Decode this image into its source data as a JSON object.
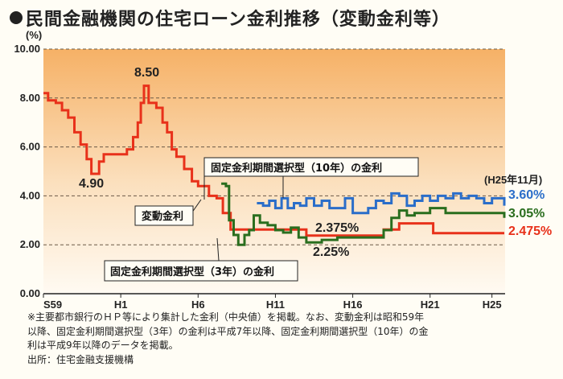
{
  "title": "民間金融機関の住宅ローン金利推移（変動金利等）",
  "chart_data": {
    "type": "line",
    "ylabel_unit": "(%)",
    "ylim": [
      0,
      10
    ],
    "yticks": [
      "0.00",
      "2.00",
      "4.00",
      "6.00",
      "8.00",
      "10.00"
    ],
    "xticks": [
      "S59",
      "H1",
      "H6",
      "H11",
      "H16",
      "H21",
      "H25"
    ],
    "grid": true,
    "series": [
      {
        "name": "変動金利",
        "color": "#e8311a",
        "points": [
          [
            1984.0,
            8.2
          ],
          [
            1984.3,
            7.9
          ],
          [
            1984.8,
            7.8
          ],
          [
            1985.2,
            7.5
          ],
          [
            1985.6,
            7.2
          ],
          [
            1986.0,
            6.6
          ],
          [
            1986.4,
            6.1
          ],
          [
            1986.8,
            5.5
          ],
          [
            1987.1,
            4.9
          ],
          [
            1987.6,
            5.4
          ],
          [
            1987.9,
            5.7
          ],
          [
            1988.6,
            5.7
          ],
          [
            1989.4,
            5.9
          ],
          [
            1989.8,
            6.4
          ],
          [
            1990.1,
            7.0
          ],
          [
            1990.3,
            7.8
          ],
          [
            1990.5,
            8.5
          ],
          [
            1990.8,
            7.8
          ],
          [
            1991.3,
            7.6
          ],
          [
            1991.7,
            7.0
          ],
          [
            1992.0,
            6.6
          ],
          [
            1992.3,
            5.9
          ],
          [
            1992.6,
            5.6
          ],
          [
            1993.1,
            5.1
          ],
          [
            1993.6,
            4.6
          ],
          [
            1994.0,
            4.4
          ],
          [
            1994.5,
            4.4
          ],
          [
            1994.7,
            4.0
          ],
          [
            1995.2,
            3.9
          ],
          [
            1995.6,
            3.3
          ],
          [
            1996.1,
            2.625
          ],
          [
            1999.0,
            2.625
          ],
          [
            2000.0,
            2.625
          ],
          [
            2001.0,
            2.375
          ],
          [
            2005.0,
            2.375
          ],
          [
            2006.0,
            2.625
          ],
          [
            2007.0,
            2.875
          ],
          [
            2009.0,
            2.875
          ],
          [
            2009.2,
            2.475
          ],
          [
            2013.8,
            2.475
          ]
        ],
        "end_label": "2.475%"
      },
      {
        "name": "固定金利期間選択型（3年）",
        "color": "#2a6e1e",
        "points": [
          [
            1995.5,
            4.5
          ],
          [
            1995.8,
            4.4
          ],
          [
            1996.0,
            3.0
          ],
          [
            1996.3,
            2.4
          ],
          [
            1996.6,
            2.0
          ],
          [
            1997.0,
            2.4
          ],
          [
            1997.3,
            2.6
          ],
          [
            1997.6,
            3.2
          ],
          [
            1998.0,
            2.9
          ],
          [
            1998.5,
            2.8
          ],
          [
            1999.0,
            2.6
          ],
          [
            1999.5,
            2.5
          ],
          [
            2000.0,
            2.7
          ],
          [
            2000.5,
            2.3
          ],
          [
            2001.0,
            2.1
          ],
          [
            2002.0,
            2.2
          ],
          [
            2003.0,
            2.3
          ],
          [
            2004.0,
            2.3
          ],
          [
            2005.0,
            2.3
          ],
          [
            2006.0,
            2.6
          ],
          [
            2006.5,
            3.1
          ],
          [
            2007.0,
            3.4
          ],
          [
            2007.5,
            3.2
          ],
          [
            2008.0,
            3.3
          ],
          [
            2009.0,
            3.5
          ],
          [
            2010.0,
            3.3
          ],
          [
            2011.0,
            3.3
          ],
          [
            2012.0,
            3.3
          ],
          [
            2013.8,
            3.1
          ]
        ],
        "end_label": "3.05%"
      },
      {
        "name": "固定金利期間選択型（10年）の金利",
        "color": "#2b6ec9",
        "points": [
          [
            1997.8,
            3.7
          ],
          [
            1998.2,
            3.6
          ],
          [
            1998.6,
            3.8
          ],
          [
            1999.0,
            3.5
          ],
          [
            1999.4,
            3.9
          ],
          [
            1999.8,
            3.5
          ],
          [
            2000.2,
            3.7
          ],
          [
            2000.6,
            3.6
          ],
          [
            2001.0,
            3.9
          ],
          [
            2001.5,
            3.6
          ],
          [
            2002.0,
            3.8
          ],
          [
            2002.5,
            3.5
          ],
          [
            2003.0,
            3.5
          ],
          [
            2003.5,
            3.9
          ],
          [
            2004.0,
            3.3
          ],
          [
            2004.5,
            3.3
          ],
          [
            2005.0,
            3.5
          ],
          [
            2005.5,
            3.8
          ],
          [
            2006.0,
            3.7
          ],
          [
            2006.5,
            4.1
          ],
          [
            2007.0,
            4.0
          ],
          [
            2007.5,
            3.6
          ],
          [
            2008.0,
            3.8
          ],
          [
            2008.5,
            4.0
          ],
          [
            2009.0,
            3.8
          ],
          [
            2009.5,
            4.0
          ],
          [
            2010.0,
            3.9
          ],
          [
            2010.5,
            4.1
          ],
          [
            2011.0,
            3.9
          ],
          [
            2011.5,
            4.0
          ],
          [
            2012.0,
            3.9
          ],
          [
            2012.5,
            3.7
          ],
          [
            2013.0,
            3.9
          ],
          [
            2013.8,
            3.6
          ]
        ],
        "end_label": "3.60%"
      }
    ],
    "annotations": {
      "peak_label": "8.50",
      "low_label": "4.90",
      "var_low": "2.375%",
      "fix3_low": "2.25%",
      "date_label": "(H25年11月)"
    },
    "callouts": {
      "variable": "変動金利",
      "fixed10": "固定金利期間選択型（10年）の金利",
      "fixed3": "固定金利期間選択型（3年）の金利"
    }
  },
  "notes": {
    "line1": "※主要都市銀行のＨＰ等により集計した金利（中央値）を掲載。なお、変動金利は昭和59年",
    "line2": "以降、固定金利期間選択型（3年）の金利は平成7年以降、固定金利期間選択型（10年）の金",
    "line3": "利は平成9年以降のデータを掲載。",
    "source": "出所：住宅金融支援機構"
  }
}
